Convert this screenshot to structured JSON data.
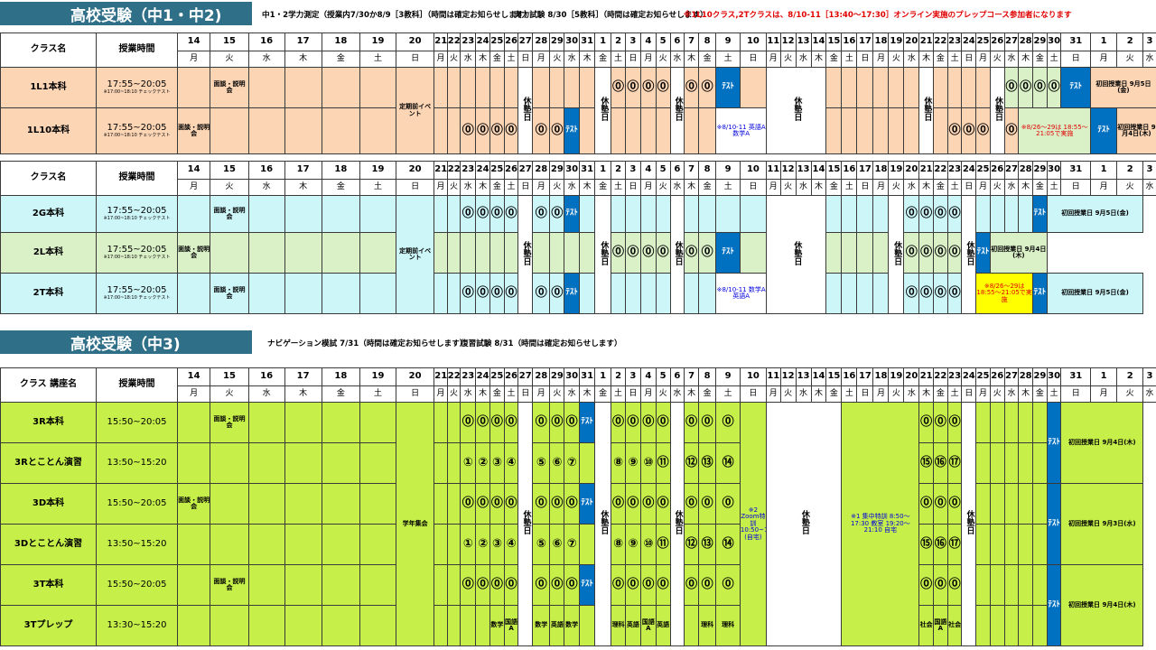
{
  "section1": {
    "title": "高校受験（中1・中2)",
    "note1": "中1・2学力測定（授業内7/30か8/9［3教科］（時間は確定お知らせします）",
    "note2": "実力試験 8/30［5教科］（時間は確定お知らせします）",
    "note3": "※1L10クラス,2Tクラスは、8/10-11［13:40～17:30］オンライン実施のプレップコース参加者になります"
  },
  "section3": {
    "title": "高校受験（中3)",
    "note1": "ナビゲーション模試 7/31（時間は確定お知らせします）",
    "note2": "復習試験 8/31（時間は確定お知らせします）"
  },
  "header": {
    "class": "クラス名",
    "class3": "クラス 講座名",
    "time": "授業時間",
    "dates": [
      "14",
      "15",
      "16",
      "17",
      "18",
      "19",
      "20",
      "21",
      "22",
      "23",
      "24",
      "25",
      "26",
      "27",
      "28",
      "29",
      "30",
      "31",
      "1",
      "2",
      "3",
      "4",
      "5",
      "6",
      "7",
      "8",
      "9",
      "10",
      "11",
      "12",
      "13",
      "14",
      "15",
      "16",
      "17",
      "18",
      "19",
      "20",
      "21",
      "22",
      "23",
      "24",
      "25",
      "26",
      "27",
      "28",
      "29",
      "30",
      "31",
      "1",
      "2",
      "3"
    ],
    "days": [
      "月",
      "火",
      "水",
      "木",
      "金",
      "土",
      "日",
      "月",
      "火",
      "水",
      "木",
      "金",
      "土",
      "日",
      "月",
      "火",
      "水",
      "木",
      "金",
      "土",
      "日",
      "月",
      "火",
      "水",
      "木",
      "金",
      "土",
      "日",
      "月",
      "火",
      "水",
      "木",
      "金",
      "土",
      "日",
      "月",
      "火",
      "水",
      "木",
      "金",
      "土",
      "日",
      "月",
      "火",
      "水",
      "木",
      "金",
      "土",
      "日",
      "月",
      "火",
      "水"
    ]
  },
  "labels": {
    "kyujuku": "休塾日",
    "test": "ﾃｽﾄ",
    "circle": "⓪",
    "event": "定期前イベント",
    "setsumei": "面談・説明会",
    "gakunen": "学年集会",
    "first2": "初回授業日 9月5日(金)",
    "first1": "初回授業日 9月4日(木)",
    "first3a": "初回授業日 9月4日(木)",
    "first3b": "初回授業日 9月3日(水)"
  },
  "s1rows": [
    {
      "name": "1L1本科",
      "time": "17:55~20:05",
      "sub": "※17:00~18:10 チェックテスト"
    },
    {
      "name": "1L10本科",
      "time": "17:55~20:05",
      "sub": "※17:00~18:10 チェックテスト"
    }
  ],
  "s2rows": [
    {
      "name": "2G本科",
      "time": "17:55~20:05",
      "sub": "※17:00~18:10 チェックテスト"
    },
    {
      "name": "2L本科",
      "time": "17:55~20:05",
      "sub": "※17:00~18:10 チェックテスト"
    },
    {
      "name": "2T本科",
      "time": "17:55~20:05",
      "sub": "※17:00~18:10 チェックテスト"
    }
  ],
  "s3rows": [
    {
      "name": "3R本科",
      "time": "15:50~20:05"
    },
    {
      "name": "3Rとことん演習",
      "time": "13:50~15:20"
    },
    {
      "name": "3D本科",
      "time": "15:50~20:05"
    },
    {
      "name": "3Dとことん演習",
      "time": "13:50~15:20"
    },
    {
      "name": "3T本科",
      "time": "15:50~20:05"
    },
    {
      "name": "3Tプレップ",
      "time": "13:30~15:20"
    }
  ],
  "notes": {
    "online": "※8/10-11 英語A 数学A",
    "online2": "※8/10-11 数学A 英語A",
    "late": "※8/26～29は 18:55～21:05で実施",
    "zoom": "※2 Zoom特訓 10:50~17:30 (自宅)",
    "shuchu": "※1 集中特訓 8:50～17:30 教室 19:20～21:10 自宅"
  },
  "tokutoko": {
    "r": [
      "①",
      "②",
      "③",
      "④",
      "⑤",
      "⑥",
      "⑦",
      "⑧",
      "⑨",
      "⑩",
      "⑪",
      "⑫",
      "⑬",
      "⑭",
      "⑮",
      "⑯",
      "⑰"
    ]
  },
  "prep": {
    "math": "数学",
    "eng": "英語",
    "sci": "理科",
    "soc": "社会",
    "kokuA": "国語A"
  }
}
